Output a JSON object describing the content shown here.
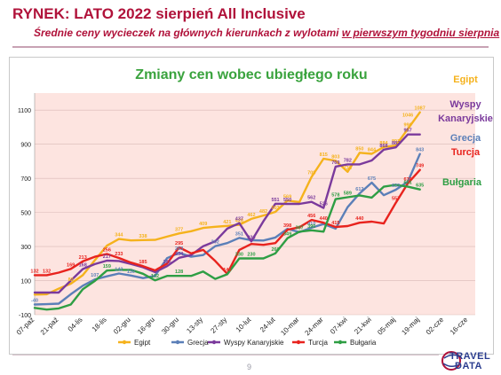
{
  "header": {
    "title": "RYNEK: LATO 2022 sierpień All Inclusive",
    "subtitle_prefix": "Średnie ceny wycieczek na głównych kierunkach z wylotami ",
    "subtitle_underlined": "w pierwszym tygodniu sierpnia"
  },
  "page_number": "9",
  "logo": {
    "line1": "TRAVEL",
    "line2": "DATA"
  },
  "colors": {
    "background_area": "#fde4e0",
    "accent": "#b0123a"
  },
  "chart_data": {
    "type": "line",
    "title": "Zmiany cen wobec ubiegłego roku",
    "xlabel": "",
    "ylabel": "",
    "ylim": [
      -100,
      1200
    ],
    "yticks": [
      -100,
      100,
      300,
      500,
      700,
      900,
      1100
    ],
    "x_tick_labels": [
      "07-paź",
      "21-paź",
      "04-lis",
      "18-lis",
      "02-gru",
      "16-gru",
      "30-gru",
      "13-sty",
      "27-sty",
      "10-lut",
      "24-lut",
      "10-mar",
      "24-mar",
      "07-kwi",
      "21-kwi",
      "05-maj",
      "19-maj",
      "02-cze",
      "16-cze"
    ],
    "x_tick_positions": [
      0,
      2,
      4,
      6,
      8,
      10,
      12,
      14,
      16,
      18,
      20,
      22,
      24,
      26,
      28,
      30,
      32,
      34,
      36
    ],
    "grid": "horizontal",
    "legend_position": "bottom",
    "series": [
      {
        "name": "Egipt",
        "color": "#f5b21c",
        "end_label": "Egipt",
        "x": [
          0,
          1,
          2,
          3,
          4,
          5,
          6,
          7,
          8,
          9,
          10,
          11,
          12,
          13,
          14,
          15,
          16,
          17,
          18,
          19,
          20,
          21,
          22,
          23,
          24,
          25,
          26,
          27,
          28,
          29,
          30,
          31,
          32
        ],
        "values": [
          18,
          20,
          53,
          82,
          132,
          220,
          305,
          344,
          336,
          338,
          339,
          358,
          377,
          390,
          409,
          416,
          421,
          428,
          462,
          482,
          503,
          569,
          561,
          708,
          815,
          803,
          738,
          850,
          844,
          884,
          892,
          990,
          1087
        ],
        "labels": [
          "",
          "",
          "",
          "82",
          "",
          "",
          "",
          "344",
          "",
          "338",
          "",
          "",
          "377",
          "",
          "409",
          "",
          "421",
          "428",
          "462",
          "482",
          "503",
          "569",
          "",
          "708",
          "815",
          "803",
          "738",
          "850",
          "844",
          "884",
          "892",
          "990",
          "1087"
        ],
        "extra_labels": [
          {
            "x": 31,
            "value": 1046,
            "text": "1046"
          }
        ]
      },
      {
        "name": "Grecja",
        "color": "#5b7fb8",
        "end_label": "Grecja",
        "x": [
          0,
          1,
          2,
          3,
          4,
          5,
          6,
          7,
          8,
          9,
          10,
          11,
          12,
          13,
          14,
          15,
          16,
          17,
          18,
          19,
          20,
          21,
          22,
          23,
          24,
          25,
          26,
          27,
          28,
          29,
          30,
          31,
          32
        ],
        "values": [
          -40,
          -38,
          -35,
          20,
          70,
          107,
          125,
          142,
          130,
          115,
          128,
          232,
          263,
          240,
          250,
          302,
          320,
          351,
          337,
          335,
          353,
          404,
          384,
          410,
          432,
          405,
          531,
          612,
          675,
          601,
          633,
          680,
          843
        ],
        "labels": [
          "-40",
          "",
          "",
          "",
          "",
          "107",
          "",
          "142",
          "130",
          "",
          "",
          "",
          "263",
          "",
          "",
          "302",
          "",
          "351",
          "",
          "",
          "",
          "",
          "",
          "410",
          "",
          "",
          "",
          "612",
          "675",
          "",
          "633",
          "",
          "843"
        ]
      },
      {
        "name": "Wyspy Kanaryjskie",
        "color": "#7b3a9c",
        "end_label": "Wyspy Kanaryjskie",
        "x": [
          0,
          1,
          2,
          3,
          4,
          5,
          6,
          7,
          8,
          9,
          10,
          11,
          12,
          13,
          14,
          15,
          16,
          17,
          18,
          19,
          20,
          21,
          22,
          23,
          24,
          25,
          26,
          27,
          28,
          29,
          30,
          31,
          32
        ],
        "values": [
          30,
          30,
          30,
          100,
          168,
          197,
          217,
          215,
          198,
          178,
          150,
          185,
          234,
          250,
          302,
          330,
          405,
          437,
          330,
          448,
          551,
          550,
          550,
          562,
          526,
          769,
          782,
          782,
          805,
          868,
          882,
          957,
          957
        ],
        "labels": [
          "",
          "",
          "",
          "",
          "168",
          "",
          "217",
          "",
          "",
          "",
          "",
          "185",
          "234",
          "",
          "",
          "",
          "",
          "437",
          "330",
          "",
          "551",
          "550",
          "",
          "562",
          "526",
          "769",
          "782",
          "",
          "",
          "868",
          "882",
          "957",
          ""
        ]
      },
      {
        "name": "Turcja",
        "color": "#e8231e",
        "end_label": "Turcja",
        "x": [
          0,
          1,
          2,
          3,
          4,
          5,
          6,
          7,
          8,
          9,
          10,
          11,
          12,
          13,
          14,
          15,
          16,
          17,
          18,
          19,
          20,
          21,
          22,
          23,
          24,
          25,
          26,
          27,
          28,
          29,
          30,
          31,
          32
        ],
        "values": [
          132,
          132,
          147,
          169,
          213,
          240,
          256,
          233,
          206,
          185,
          160,
          200,
          295,
          260,
          280,
          215,
          140,
          280,
          315,
          310,
          320,
          398,
          413,
          456,
          440,
          415,
          420,
          440,
          446,
          435,
          557,
          670,
          749
        ],
        "labels": [
          "132",
          "132",
          "",
          "169",
          "213",
          "",
          "256",
          "233",
          "",
          "185",
          "",
          "",
          "295",
          "",
          "",
          "",
          "140",
          "",
          "",
          "",
          "",
          "398",
          "",
          "456",
          "440",
          "415",
          "",
          "440",
          "",
          "",
          "557",
          "670",
          "749"
        ]
      },
      {
        "name": "Bułgaria",
        "color": "#2e9e44",
        "end_label": "Bułgaria",
        "x": [
          0,
          1,
          2,
          3,
          4,
          5,
          6,
          7,
          8,
          9,
          10,
          11,
          12,
          13,
          14,
          15,
          16,
          17,
          18,
          19,
          20,
          21,
          22,
          23,
          24,
          25,
          26,
          27,
          28,
          29,
          30,
          31,
          32
        ],
        "values": [
          -60,
          -70,
          -63,
          -40,
          50,
          98,
          159,
          163,
          163,
          140,
          102,
          128,
          128,
          128,
          153,
          110,
          137,
          230,
          230,
          230,
          260,
          349,
          387,
          395,
          387,
          578,
          589,
          600,
          587,
          651,
          662,
          651,
          635
        ],
        "labels": [
          "",
          "",
          "",
          "",
          "",
          "",
          "159",
          "",
          "",
          "",
          "102",
          "",
          "128",
          "",
          "",
          "",
          "",
          "230",
          "230",
          "",
          "260",
          "349",
          "387",
          "395",
          "",
          "578",
          "589",
          "",
          "",
          "",
          "",
          "651",
          "635"
        ]
      }
    ]
  }
}
